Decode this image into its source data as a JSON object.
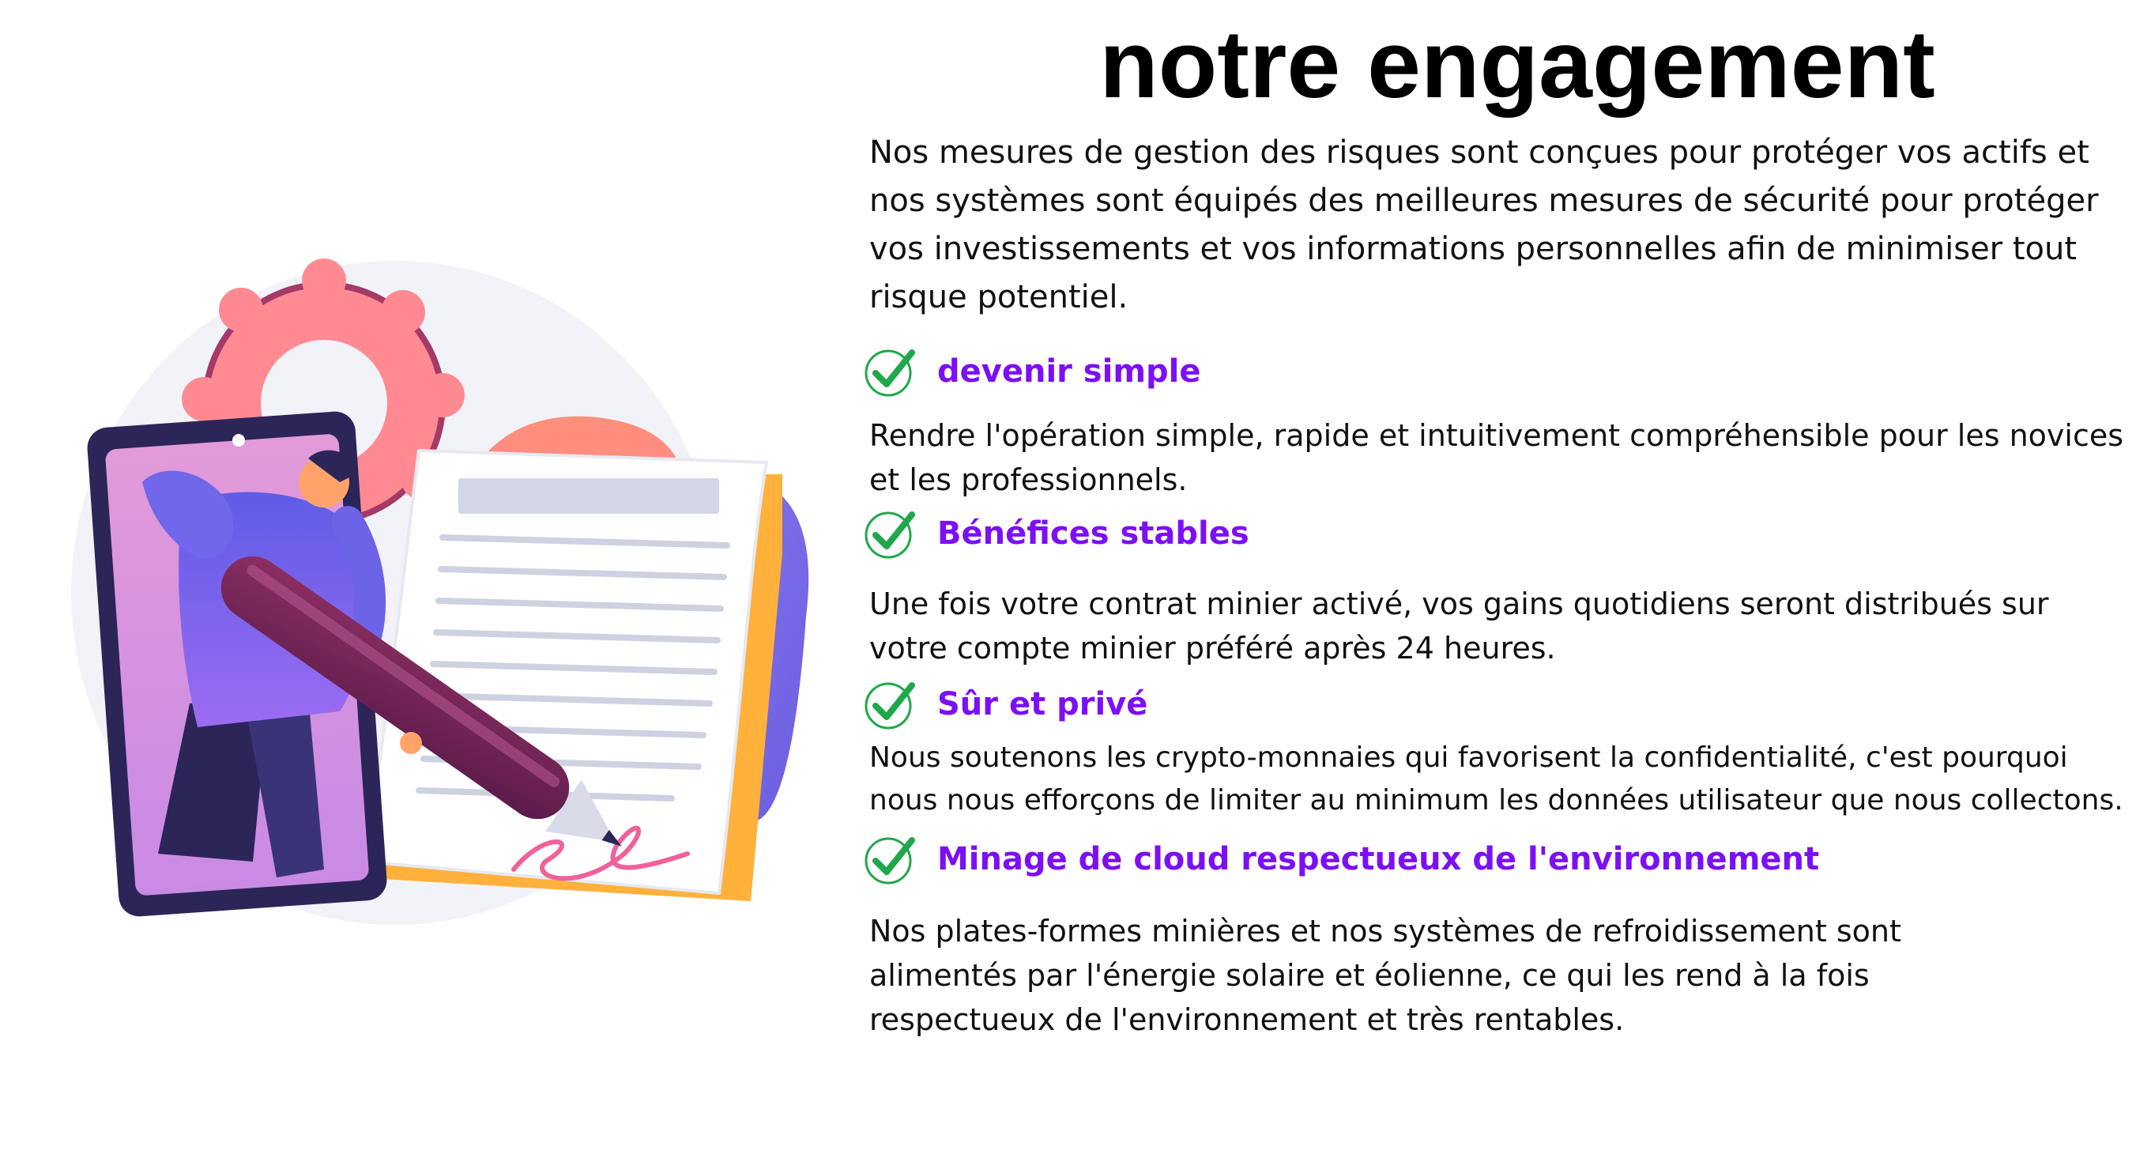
{
  "title": "notre engagement",
  "intro": "Nos mesures de gestion des risques sont conçues pour protéger vos actifs et nos systèmes sont équipés des meilleures mesures de sécurité pour protéger vos investissements et vos informations personnelles afin de minimiser tout risque potentiel.",
  "features": [
    {
      "heading": "devenir simple",
      "text": "Rendre l'opération simple, rapide et intuitivement compréhensible pour les novices et les professionnels."
    },
    {
      "heading": "Bénéfices stables",
      "text": "Une fois votre contrat minier activé, vos gains quotidiens seront distribués sur votre compte minier préféré après 24 heures."
    },
    {
      "heading": "Sûr et privé",
      "text": "Nous soutenons les crypto-monnaies qui favorisent la confidentialité, c'est pourquoi nous nous efforçons de limiter au minimum les données utilisateur que nous collectons."
    },
    {
      "heading": "Minage de cloud respectueux de l'environnement",
      "text": "Nos plates-formes minières et nos systèmes de refroidissement sont alimentés par l'énergie solaire et éolienne, ce qui les rend à la fois respectueux de l'environnement et très rentables."
    }
  ],
  "icons": {
    "check": "check-circle-icon",
    "illustration": "signing-contract-illustration"
  },
  "colors": {
    "accent": "#7c0ff5",
    "check": "#1fa84a",
    "text": "#111111"
  }
}
